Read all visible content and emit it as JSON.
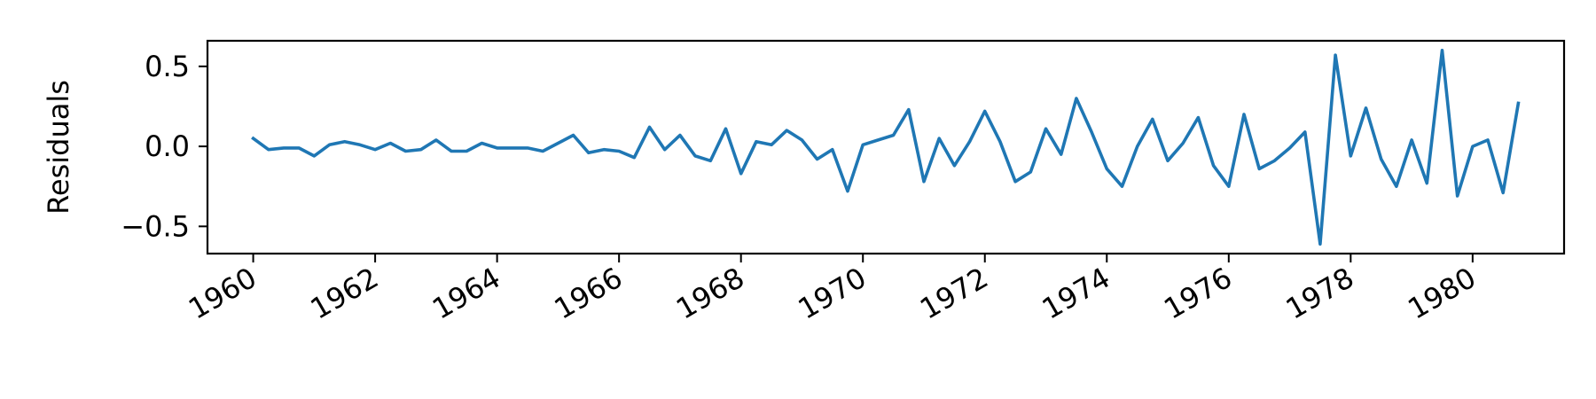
{
  "chart_data": {
    "type": "line",
    "title": "",
    "xlabel": "",
    "ylabel": "Residuals",
    "x_ticks": [
      "1960",
      "1962",
      "1964",
      "1966",
      "1968",
      "1970",
      "1972",
      "1974",
      "1976",
      "1978",
      "1980"
    ],
    "y_ticks": [
      "0.5",
      "0.0",
      "−0.5"
    ],
    "y_tick_values": [
      0.5,
      0.0,
      -0.5
    ],
    "ylim": [
      -0.67,
      0.66
    ],
    "xlim": [
      "1959-04-01",
      "1981-07-01"
    ],
    "grid": false,
    "legend": "none",
    "series": [
      {
        "color": "#1f77b4",
        "x": [
          "1960-01-01",
          "1960-04-01",
          "1960-07-01",
          "1960-10-01",
          "1961-01-01",
          "1961-04-01",
          "1961-07-01",
          "1961-10-01",
          "1962-01-01",
          "1962-04-01",
          "1962-07-01",
          "1962-10-01",
          "1963-01-01",
          "1963-04-01",
          "1963-07-01",
          "1963-10-01",
          "1964-01-01",
          "1964-04-01",
          "1964-07-01",
          "1964-10-01",
          "1965-01-01",
          "1965-04-01",
          "1965-07-01",
          "1965-10-01",
          "1966-01-01",
          "1966-04-01",
          "1966-07-01",
          "1966-10-01",
          "1967-01-01",
          "1967-04-01",
          "1967-07-01",
          "1967-10-01",
          "1968-01-01",
          "1968-04-01",
          "1968-07-01",
          "1968-10-01",
          "1969-01-01",
          "1969-04-01",
          "1969-07-01",
          "1969-10-01",
          "1970-01-01",
          "1970-04-01",
          "1970-07-01",
          "1970-10-01",
          "1971-01-01",
          "1971-04-01",
          "1971-07-01",
          "1971-10-01",
          "1972-01-01",
          "1972-04-01",
          "1972-07-01",
          "1972-10-01",
          "1973-01-01",
          "1973-04-01",
          "1973-07-01",
          "1973-10-01",
          "1974-01-01",
          "1974-04-01",
          "1974-07-01",
          "1974-10-01",
          "1975-01-01",
          "1975-04-01",
          "1975-07-01",
          "1975-10-01",
          "1976-01-01",
          "1976-04-01",
          "1976-07-01",
          "1976-10-01",
          "1977-01-01",
          "1977-04-01",
          "1977-07-01",
          "1977-10-01",
          "1978-01-01",
          "1978-04-01",
          "1978-07-01",
          "1978-10-01",
          "1979-01-01",
          "1979-04-01",
          "1979-07-01",
          "1979-10-01",
          "1980-01-01",
          "1980-04-01",
          "1980-07-01",
          "1980-10-01"
        ],
        "values": [
          0.05,
          -0.02,
          -0.01,
          -0.01,
          -0.06,
          0.01,
          0.03,
          0.01,
          -0.02,
          0.02,
          -0.03,
          -0.02,
          0.04,
          -0.03,
          -0.03,
          0.02,
          -0.01,
          -0.01,
          -0.01,
          -0.03,
          0.02,
          0.07,
          -0.04,
          -0.02,
          -0.03,
          -0.07,
          0.12,
          -0.02,
          0.07,
          -0.06,
          -0.09,
          0.11,
          -0.17,
          0.03,
          0.01,
          0.1,
          0.04,
          -0.08,
          -0.02,
          -0.28,
          0.01,
          0.04,
          0.07,
          0.23,
          -0.22,
          0.05,
          -0.12,
          0.03,
          0.22,
          0.03,
          -0.22,
          -0.16,
          0.11,
          -0.05,
          0.3,
          0.09,
          -0.14,
          -0.25,
          0.0,
          0.17,
          -0.09,
          0.02,
          0.18,
          -0.12,
          -0.25,
          0.2,
          -0.14,
          -0.09,
          -0.01,
          0.09,
          -0.61,
          0.57,
          -0.06,
          0.24,
          -0.08,
          -0.25,
          0.04,
          -0.23,
          0.6,
          -0.31,
          0.0,
          0.04,
          -0.29,
          0.27
        ]
      }
    ]
  }
}
